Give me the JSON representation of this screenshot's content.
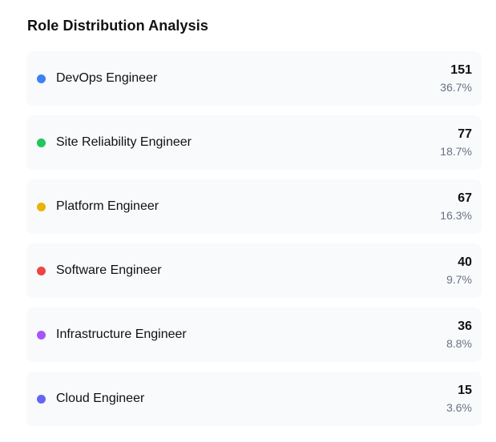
{
  "title": "Role Distribution Analysis",
  "roles": [
    {
      "label": "DevOps Engineer",
      "count": "151",
      "percent": "36.7%",
      "color": "#3b82f6"
    },
    {
      "label": "Site Reliability Engineer",
      "count": "77",
      "percent": "18.7%",
      "color": "#22c55e"
    },
    {
      "label": "Platform Engineer",
      "count": "67",
      "percent": "16.3%",
      "color": "#eab308"
    },
    {
      "label": "Software Engineer",
      "count": "40",
      "percent": "9.7%",
      "color": "#ef4444"
    },
    {
      "label": "Infrastructure Engineer",
      "count": "36",
      "percent": "8.8%",
      "color": "#a855f7"
    },
    {
      "label": "Cloud Engineer",
      "count": "15",
      "percent": "3.6%",
      "color": "#6366f1"
    }
  ]
}
